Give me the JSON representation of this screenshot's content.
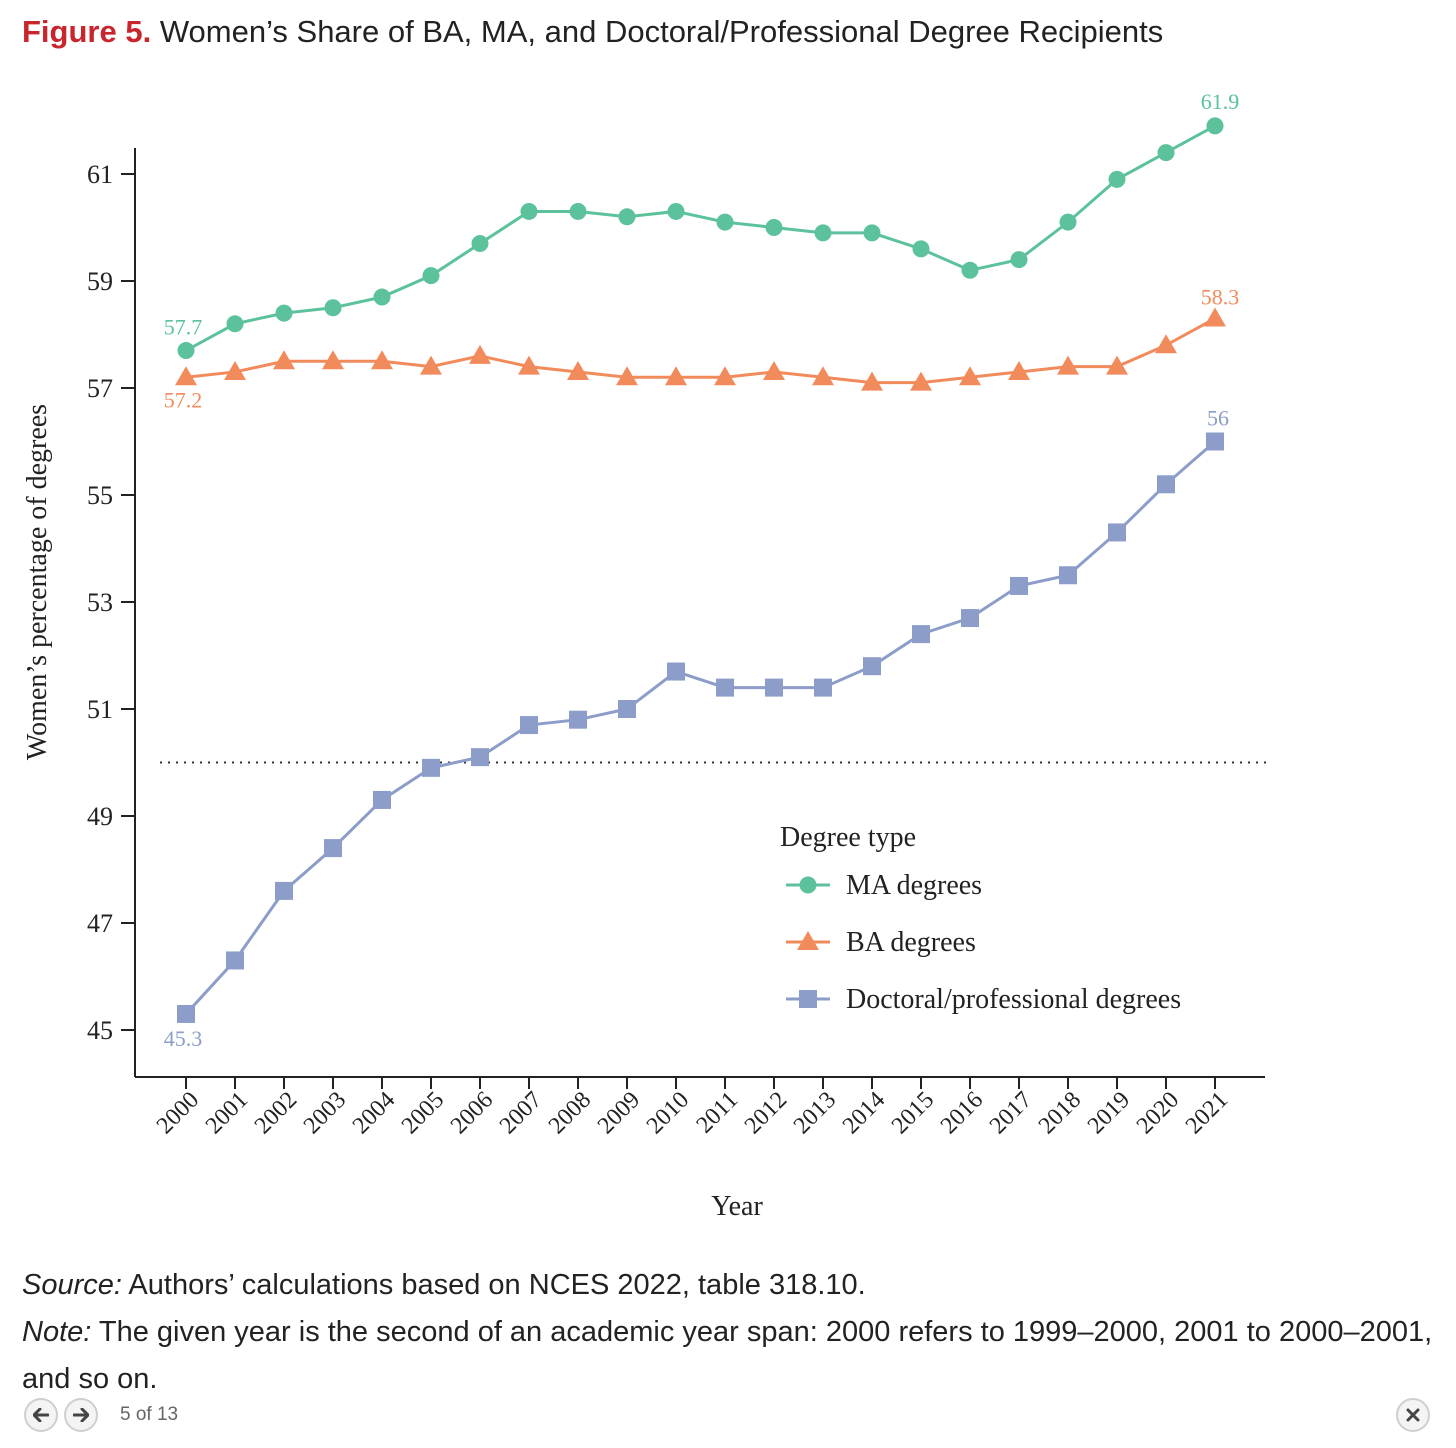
{
  "figure": {
    "label": "Figure 5.",
    "title": "Women’s Share of BA, MA, and Doctoral/Professional Degree Recipients"
  },
  "chart_data": {
    "type": "line",
    "xlabel": "Year",
    "ylabel": "Women’s percentage of degrees",
    "ylim": [
      44,
      61.5
    ],
    "yticks": [
      45,
      47,
      49,
      51,
      53,
      55,
      57,
      59,
      61
    ],
    "reference_line": 50,
    "categories": [
      "2000",
      "2001",
      "2002",
      "2003",
      "2004",
      "2005",
      "2006",
      "2007",
      "2008",
      "2009",
      "2010",
      "2011",
      "2012",
      "2013",
      "2014",
      "2015",
      "2016",
      "2017",
      "2018",
      "2019",
      "2020",
      "2021"
    ],
    "legend_title": "Degree type",
    "series": [
      {
        "name": "MA degrees",
        "color": "#5cc29b",
        "marker": "circle",
        "values": [
          57.7,
          58.2,
          58.4,
          58.5,
          58.7,
          59.1,
          59.7,
          60.3,
          60.3,
          60.2,
          60.3,
          60.1,
          60.0,
          59.9,
          59.9,
          59.6,
          59.2,
          59.4,
          60.1,
          60.9,
          61.4,
          61.9
        ],
        "first_label": "57.7",
        "last_label": "61.9"
      },
      {
        "name": "BA degrees",
        "color": "#f28b5b",
        "marker": "triangle",
        "values": [
          57.2,
          57.3,
          57.5,
          57.5,
          57.5,
          57.4,
          57.6,
          57.4,
          57.3,
          57.2,
          57.2,
          57.2,
          57.3,
          57.2,
          57.1,
          57.1,
          57.2,
          57.3,
          57.4,
          57.4,
          57.8,
          58.3
        ],
        "first_label": "57.2",
        "last_label": "58.3"
      },
      {
        "name": "Doctoral/professional degrees",
        "color": "#8c9dc9",
        "marker": "square",
        "values": [
          45.3,
          46.3,
          47.6,
          48.4,
          49.3,
          49.9,
          50.1,
          50.7,
          50.8,
          51.0,
          51.7,
          51.4,
          51.4,
          51.4,
          51.8,
          52.4,
          52.7,
          53.3,
          53.5,
          54.3,
          55.2,
          56.0
        ],
        "first_label": "45.3",
        "last_label": "56"
      }
    ]
  },
  "notes": {
    "source_label": "Source:",
    "source_text": " Authors’ calculations based on NCES 2022, table 318.10.",
    "note_label": "Note:",
    "note_text": " The given year is the second of an academic year span: 2000 refers to 1999–2000, 2001 to 2000–2001, and so on."
  },
  "nav": {
    "pager": "5 of 13",
    "prev_icon": "arrow-left-icon",
    "next_icon": "arrow-right-icon",
    "close_icon": "close-icon"
  }
}
